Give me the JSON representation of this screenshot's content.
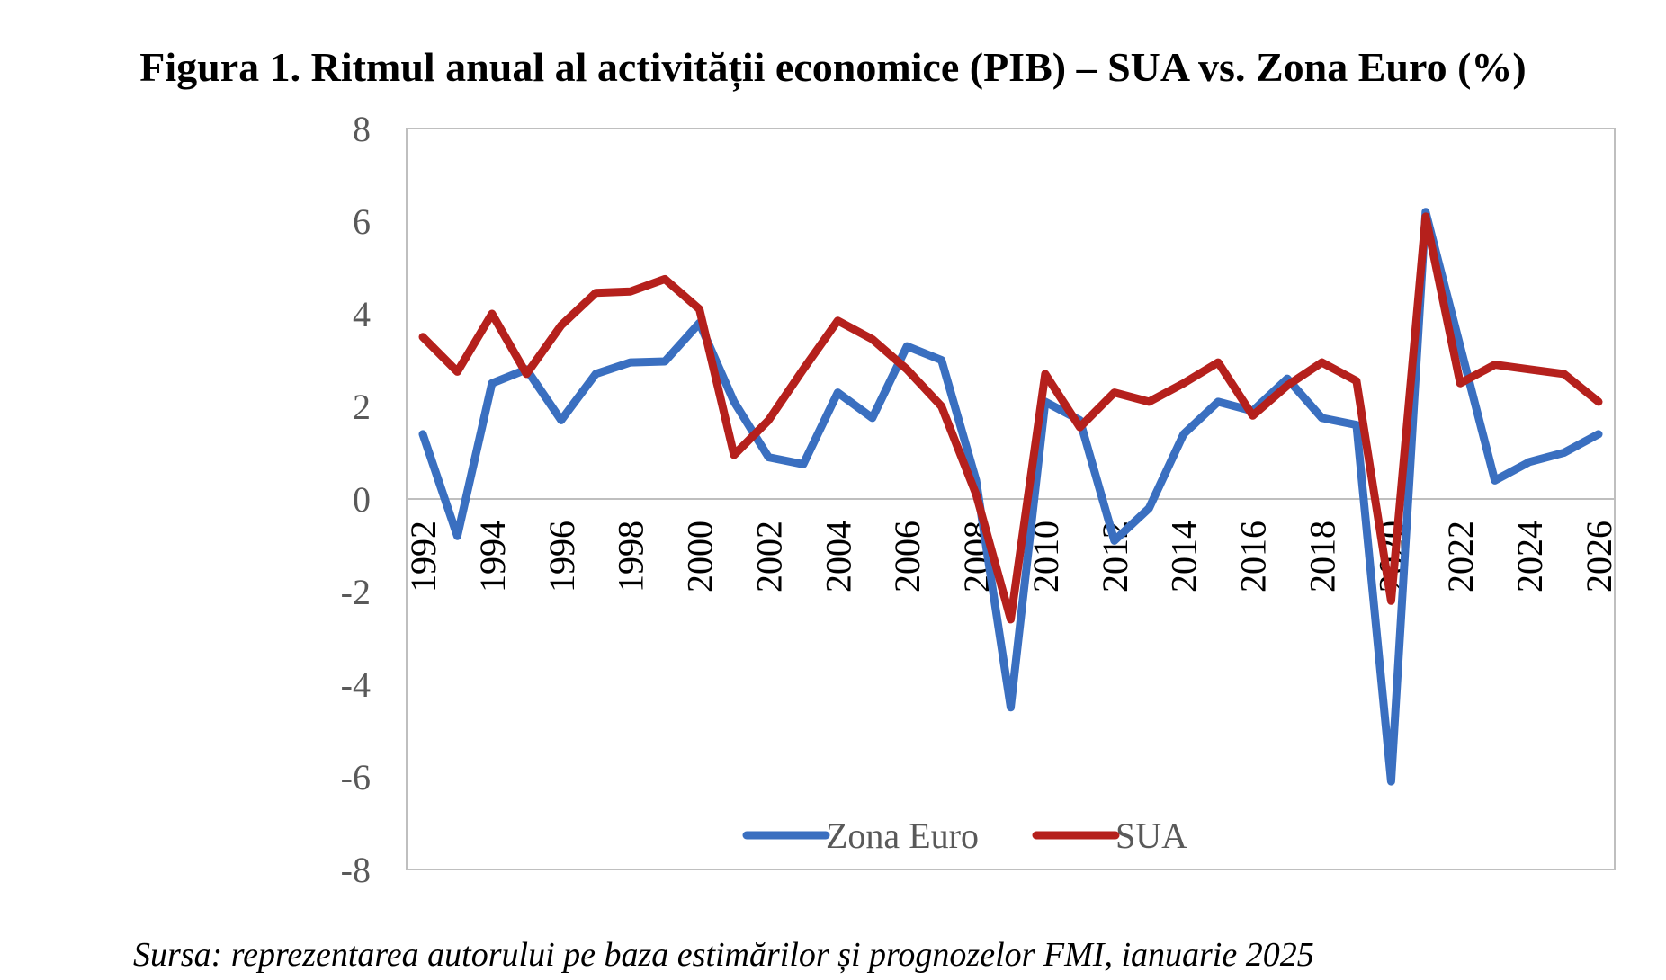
{
  "title": "Figura 1. Ritmul anual al activității economice (PIB) – SUA vs. Zona Euro (%)",
  "source": "Sursa: reprezentarea autorului pe baza estimărilor și prognozelor FMI, ianuarie 2025",
  "chart_data": {
    "type": "line",
    "title": "Figura 1. Ritmul anual al activității economice (PIB) – SUA vs. Zona Euro (%)",
    "xlabel": "",
    "ylabel": "",
    "x": [
      1992,
      1993,
      1994,
      1995,
      1996,
      1997,
      1998,
      1999,
      2000,
      2001,
      2002,
      2003,
      2004,
      2005,
      2006,
      2007,
      2008,
      2009,
      2010,
      2011,
      2012,
      2013,
      2014,
      2015,
      2016,
      2017,
      2018,
      2019,
      2020,
      2021,
      2022,
      2023,
      2024,
      2025,
      2026
    ],
    "x_tick_labels": [
      "1992",
      "1994",
      "1996",
      "1998",
      "2000",
      "2002",
      "2004",
      "2006",
      "2008",
      "2010",
      "2012",
      "2014",
      "2016",
      "2018",
      "2020",
      "2022",
      "2024",
      "2026"
    ],
    "y_ticks": [
      "8",
      "6",
      "4",
      "2",
      "0",
      "-2",
      "-4",
      "-6",
      "-8"
    ],
    "ylim": [
      -8,
      8
    ],
    "grid": false,
    "legend_position": "bottom-center",
    "series": [
      {
        "name": "Zona Euro",
        "color": "#3a6fc0",
        "values": [
          1.4,
          -0.8,
          2.5,
          2.8,
          1.7,
          2.7,
          2.95,
          2.97,
          3.8,
          2.1,
          0.9,
          0.75,
          2.3,
          1.75,
          3.3,
          3.0,
          0.4,
          -4.5,
          2.1,
          1.7,
          -0.9,
          -0.2,
          1.4,
          2.1,
          1.9,
          2.6,
          1.75,
          1.6,
          -6.1,
          6.2,
          3.3,
          0.4,
          0.8,
          1.0,
          1.4
        ]
      },
      {
        "name": "SUA",
        "color": "#b5201c",
        "values": [
          3.5,
          2.75,
          4.0,
          2.7,
          3.75,
          4.45,
          4.48,
          4.75,
          4.1,
          0.95,
          1.7,
          2.8,
          3.85,
          3.45,
          2.8,
          2.0,
          0.1,
          -2.6,
          2.7,
          1.55,
          2.3,
          2.1,
          2.5,
          2.95,
          1.8,
          2.45,
          2.95,
          2.55,
          -2.2,
          6.1,
          2.5,
          2.9,
          2.8,
          2.7,
          2.1
        ]
      }
    ]
  }
}
